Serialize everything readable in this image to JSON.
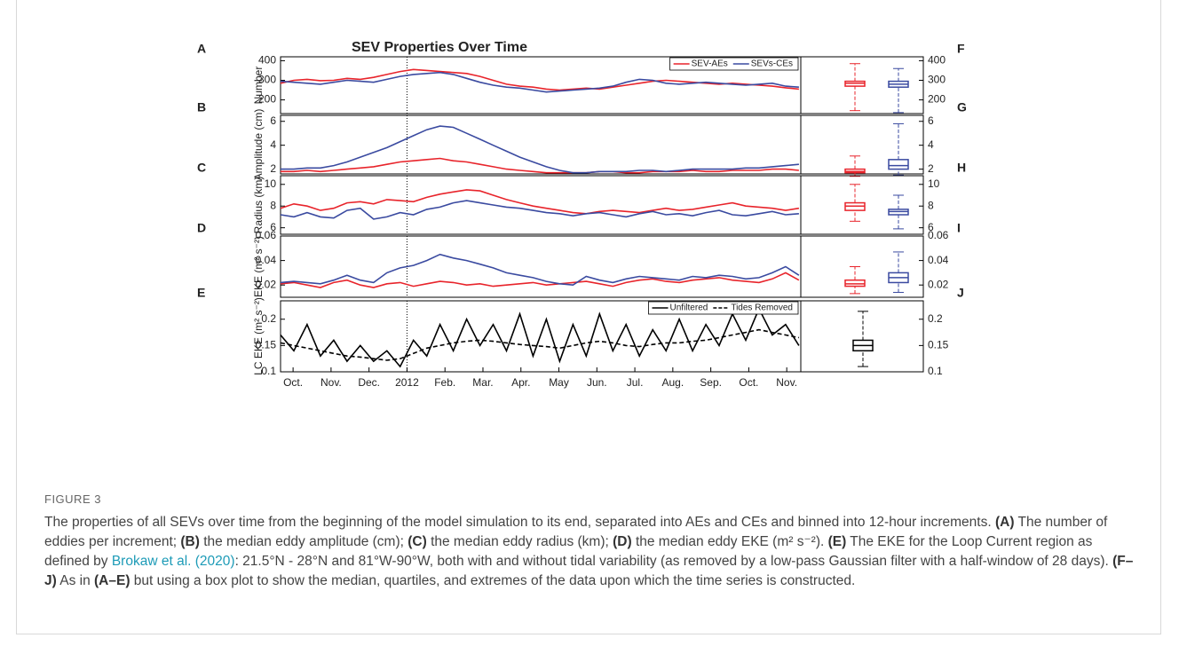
{
  "chart_data": [
    {
      "type": "line",
      "panel_label": "A",
      "box_panel_label": "F",
      "title": "SEV Properties Over Time",
      "ylabel": "Number",
      "x": [
        -0.33,
        0.02,
        0.37,
        0.72,
        1.07,
        1.42,
        1.77,
        2.12,
        2.47,
        2.82,
        3.17,
        3.52,
        3.87,
        4.22,
        4.57,
        4.92,
        5.27,
        5.62,
        5.97,
        6.32,
        6.67,
        7.02,
        7.37,
        7.72,
        8.07,
        8.42,
        8.77,
        9.12,
        9.47,
        9.82,
        10.17,
        10.52,
        10.87,
        11.22,
        11.57,
        11.92,
        12.27,
        12.62,
        12.97,
        13.32
      ],
      "xlim": [
        -0.33,
        13.37
      ],
      "ylim": [
        130,
        420
      ],
      "yticks": [
        200,
        300,
        400
      ],
      "reference_line_x": 3,
      "legend": "upper right",
      "series": [
        {
          "name": "SEV-AEs",
          "color": "#e8242b",
          "values": [
            285,
            300,
            305,
            298,
            300,
            310,
            305,
            315,
            330,
            345,
            355,
            350,
            345,
            340,
            335,
            320,
            300,
            280,
            270,
            265,
            255,
            250,
            255,
            260,
            255,
            265,
            275,
            285,
            295,
            300,
            295,
            290,
            285,
            280,
            285,
            280,
            275,
            270,
            262,
            255
          ],
          "box": [
            145,
            270,
            285,
            295,
            385
          ]
        },
        {
          "name": "SEVs-CEs",
          "color": "#3a4aa0",
          "values": [
            295,
            290,
            285,
            280,
            290,
            300,
            295,
            290,
            305,
            320,
            330,
            335,
            340,
            330,
            310,
            290,
            275,
            265,
            260,
            250,
            240,
            245,
            250,
            255,
            260,
            270,
            290,
            305,
            300,
            285,
            280,
            285,
            290,
            285,
            280,
            275,
            280,
            285,
            270,
            265
          ],
          "box": [
            135,
            265,
            280,
            295,
            360
          ]
        }
      ]
    },
    {
      "type": "line",
      "panel_label": "B",
      "box_panel_label": "G",
      "ylabel": "Amplitude (cm)",
      "x": [
        -0.33,
        0.02,
        0.37,
        0.72,
        1.07,
        1.42,
        1.77,
        2.12,
        2.47,
        2.82,
        3.17,
        3.52,
        3.87,
        4.22,
        4.57,
        4.92,
        5.27,
        5.62,
        5.97,
        6.32,
        6.67,
        7.02,
        7.37,
        7.72,
        8.07,
        8.42,
        8.77,
        9.12,
        9.47,
        9.82,
        10.17,
        10.52,
        10.87,
        11.22,
        11.57,
        11.92,
        12.27,
        12.62,
        12.97,
        13.32
      ],
      "xlim": [
        -0.33,
        13.37
      ],
      "ylim": [
        1.6,
        6.5
      ],
      "yticks": [
        2,
        4,
        6
      ],
      "reference_line_x": 3,
      "series": [
        {
          "color": "#e8242b",
          "values": [
            1.8,
            1.8,
            1.9,
            1.8,
            1.9,
            2.0,
            2.1,
            2.2,
            2.4,
            2.6,
            2.7,
            2.8,
            2.9,
            2.7,
            2.6,
            2.4,
            2.2,
            2.0,
            1.9,
            1.8,
            1.7,
            1.7,
            1.7,
            1.7,
            1.8,
            1.8,
            1.7,
            1.7,
            1.8,
            1.8,
            1.8,
            1.9,
            1.8,
            1.8,
            1.9,
            1.9,
            1.9,
            2.0,
            2.0,
            1.9
          ],
          "box": [
            1.4,
            1.7,
            1.8,
            2.0,
            3.1
          ]
        },
        {
          "color": "#3a4aa0",
          "values": [
            2.0,
            2.0,
            2.1,
            2.1,
            2.3,
            2.6,
            3.0,
            3.4,
            3.8,
            4.3,
            4.8,
            5.3,
            5.6,
            5.5,
            5.0,
            4.5,
            4.0,
            3.5,
            3.0,
            2.6,
            2.2,
            1.9,
            1.7,
            1.7,
            1.8,
            1.8,
            1.8,
            1.9,
            1.9,
            1.8,
            1.9,
            2.0,
            2.0,
            2.0,
            2.0,
            2.1,
            2.1,
            2.2,
            2.3,
            2.4
          ],
          "box": [
            1.5,
            2.0,
            2.3,
            2.8,
            5.8
          ]
        }
      ]
    },
    {
      "type": "line",
      "panel_label": "C",
      "box_panel_label": "H",
      "ylabel": "Radius (km)",
      "x": [
        -0.33,
        0.02,
        0.37,
        0.72,
        1.07,
        1.42,
        1.77,
        2.12,
        2.47,
        2.82,
        3.17,
        3.52,
        3.87,
        4.22,
        4.57,
        4.92,
        5.27,
        5.62,
        5.97,
        6.32,
        6.67,
        7.02,
        7.37,
        7.72,
        8.07,
        8.42,
        8.77,
        9.12,
        9.47,
        9.82,
        10.17,
        10.52,
        10.87,
        11.22,
        11.57,
        11.92,
        12.27,
        12.62,
        12.97,
        13.32
      ],
      "xlim": [
        -0.33,
        13.37
      ],
      "ylim": [
        5.4,
        10.8
      ],
      "yticks": [
        6,
        8,
        10
      ],
      "reference_line_x": 3,
      "series": [
        {
          "color": "#e8242b",
          "values": [
            7.8,
            8.2,
            8.0,
            7.6,
            7.8,
            8.3,
            8.4,
            8.2,
            8.6,
            8.5,
            8.4,
            8.8,
            9.1,
            9.3,
            9.5,
            9.4,
            9.0,
            8.6,
            8.3,
            8.0,
            7.8,
            7.6,
            7.4,
            7.3,
            7.5,
            7.6,
            7.5,
            7.4,
            7.6,
            7.8,
            7.6,
            7.7,
            7.9,
            8.1,
            8.3,
            8.0,
            7.9,
            7.8,
            7.6,
            7.8
          ],
          "box": [
            6.6,
            7.6,
            8.0,
            8.3,
            10.0
          ]
        },
        {
          "color": "#3a4aa0",
          "values": [
            7.2,
            7.0,
            7.4,
            7.0,
            6.9,
            7.6,
            7.8,
            6.8,
            7.0,
            7.4,
            7.2,
            7.7,
            7.9,
            8.3,
            8.5,
            8.3,
            8.1,
            7.9,
            7.8,
            7.6,
            7.4,
            7.3,
            7.1,
            7.3,
            7.4,
            7.2,
            7.0,
            7.3,
            7.5,
            7.2,
            7.3,
            7.1,
            7.4,
            7.6,
            7.2,
            7.1,
            7.3,
            7.5,
            7.2,
            7.3
          ],
          "box": [
            5.9,
            7.2,
            7.5,
            7.7,
            9.0
          ]
        }
      ]
    },
    {
      "type": "line",
      "panel_label": "D",
      "box_panel_label": "I",
      "ylabel": "EKE (m² s⁻²)",
      "x": [
        -0.33,
        0.02,
        0.37,
        0.72,
        1.07,
        1.42,
        1.77,
        2.12,
        2.47,
        2.82,
        3.17,
        3.52,
        3.87,
        4.22,
        4.57,
        4.92,
        5.27,
        5.62,
        5.97,
        6.32,
        6.67,
        7.02,
        7.37,
        7.72,
        8.07,
        8.42,
        8.77,
        9.12,
        9.47,
        9.82,
        10.17,
        10.52,
        10.87,
        11.22,
        11.57,
        11.92,
        12.27,
        12.62,
        12.97,
        13.32
      ],
      "xlim": [
        -0.33,
        13.37
      ],
      "ylim": [
        0.01,
        0.06
      ],
      "yticks": [
        0.02,
        0.04,
        0.06
      ],
      "reference_line_x": 3,
      "series": [
        {
          "color": "#e8242b",
          "values": [
            0.021,
            0.022,
            0.02,
            0.018,
            0.022,
            0.024,
            0.02,
            0.018,
            0.021,
            0.022,
            0.019,
            0.021,
            0.023,
            0.022,
            0.02,
            0.021,
            0.019,
            0.02,
            0.021,
            0.022,
            0.02,
            0.021,
            0.022,
            0.023,
            0.021,
            0.019,
            0.022,
            0.024,
            0.025,
            0.023,
            0.022,
            0.024,
            0.025,
            0.026,
            0.024,
            0.023,
            0.022,
            0.025,
            0.03,
            0.024
          ],
          "box": [
            0.013,
            0.019,
            0.021,
            0.024,
            0.035
          ]
        },
        {
          "color": "#3a4aa0",
          "values": [
            0.022,
            0.023,
            0.022,
            0.021,
            0.024,
            0.028,
            0.024,
            0.022,
            0.03,
            0.034,
            0.036,
            0.04,
            0.045,
            0.042,
            0.04,
            0.037,
            0.034,
            0.03,
            0.028,
            0.026,
            0.023,
            0.021,
            0.02,
            0.027,
            0.024,
            0.022,
            0.025,
            0.027,
            0.026,
            0.025,
            0.024,
            0.027,
            0.026,
            0.028,
            0.027,
            0.025,
            0.026,
            0.03,
            0.035,
            0.028
          ],
          "box": [
            0.014,
            0.022,
            0.026,
            0.03,
            0.047
          ]
        }
      ]
    },
    {
      "type": "line",
      "panel_label": "E",
      "box_panel_label": "J",
      "ylabel": "LC EKE (m² s⁻²)",
      "x": [
        -0.33,
        0.02,
        0.37,
        0.72,
        1.07,
        1.42,
        1.77,
        2.12,
        2.47,
        2.82,
        3.17,
        3.52,
        3.87,
        4.22,
        4.57,
        4.92,
        5.27,
        5.62,
        5.97,
        6.32,
        6.67,
        7.02,
        7.37,
        7.72,
        8.07,
        8.42,
        8.77,
        9.12,
        9.47,
        9.82,
        10.17,
        10.52,
        10.87,
        11.22,
        11.57,
        11.92,
        12.27,
        12.62,
        12.97,
        13.32
      ],
      "xlim": [
        -0.33,
        13.37
      ],
      "ylim": [
        0.1,
        0.235
      ],
      "yticks": [
        0.1,
        0.15,
        0.2
      ],
      "reference_line_x": 3,
      "legend": "upper right",
      "xticks": [
        {
          "value": 0,
          "label": "Oct."
        },
        {
          "value": 1,
          "label": "Nov."
        },
        {
          "value": 2,
          "label": "Dec."
        },
        {
          "value": 3,
          "label": "2012"
        },
        {
          "value": 4,
          "label": "Feb."
        },
        {
          "value": 5,
          "label": "Mar."
        },
        {
          "value": 6,
          "label": "Apr."
        },
        {
          "value": 7,
          "label": "May"
        },
        {
          "value": 8,
          "label": "Jun."
        },
        {
          "value": 9,
          "label": "Jul."
        },
        {
          "value": 10,
          "label": "Aug."
        },
        {
          "value": 11,
          "label": "Sep."
        },
        {
          "value": 12,
          "label": "Oct."
        },
        {
          "value": 13,
          "label": "Nov."
        }
      ],
      "series": [
        {
          "name": "Unfiltered",
          "color": "#000000",
          "line_style": "solid",
          "values": [
            0.17,
            0.14,
            0.19,
            0.13,
            0.16,
            0.12,
            0.15,
            0.12,
            0.14,
            0.11,
            0.16,
            0.13,
            0.19,
            0.14,
            0.2,
            0.15,
            0.19,
            0.14,
            0.21,
            0.13,
            0.2,
            0.12,
            0.19,
            0.13,
            0.21,
            0.14,
            0.19,
            0.13,
            0.18,
            0.14,
            0.2,
            0.14,
            0.19,
            0.15,
            0.21,
            0.16,
            0.22,
            0.17,
            0.19,
            0.15
          ],
          "box": [
            0.11,
            0.14,
            0.15,
            0.16,
            0.215
          ]
        },
        {
          "name": "Tides Removed",
          "color": "#000000",
          "line_style": "dashed",
          "values": [
            0.155,
            0.15,
            0.145,
            0.14,
            0.135,
            0.13,
            0.128,
            0.125,
            0.122,
            0.125,
            0.135,
            0.145,
            0.15,
            0.155,
            0.158,
            0.16,
            0.158,
            0.155,
            0.152,
            0.15,
            0.148,
            0.145,
            0.15,
            0.155,
            0.158,
            0.155,
            0.15,
            0.148,
            0.152,
            0.155,
            0.155,
            0.158,
            0.16,
            0.165,
            0.17,
            0.175,
            0.18,
            0.175,
            0.17,
            0.165
          ]
        }
      ]
    }
  ],
  "caption": {
    "label": "FIGURE 3",
    "parts": [
      "The properties of all SEVs over time from the beginning of the model simulation to its end, separated into AEs and CEs and binned into 12-hour increments. ",
      "(A)",
      " The number of eddies per increment; ",
      "(B)",
      " the median eddy amplitude (cm); ",
      "(C)",
      " the median eddy radius (km); ",
      "(D)",
      " the median eddy EKE (m² s⁻²). ",
      "(E)",
      " The EKE for the Loop Current region as defined by ",
      "Brokaw et al. (2020)",
      ": 21.5°N - 28°N and 81°W-90°W, both with and without tidal variability (as removed by a low-pass Gaussian filter with a half-window of 28 days). ",
      "(F–J)",
      " As in ",
      "(A–E)",
      " but using a box plot to show the median, quartiles, and extremes of the data upon which the time series is constructed."
    ]
  }
}
